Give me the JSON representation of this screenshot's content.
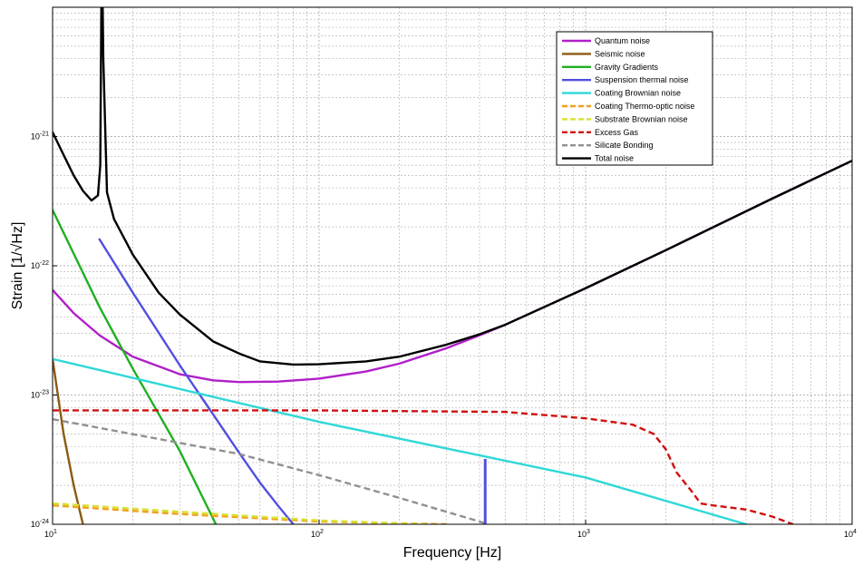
{
  "chart_data": {
    "type": "line",
    "xlabel": "Frequency [Hz]",
    "ylabel": "Strain [1/√Hz]",
    "xscale": "log",
    "yscale": "log",
    "xlim": [
      10,
      10000
    ],
    "ylim": [
      1e-24,
      1e-20
    ],
    "grid": true,
    "legend_position": "top-right",
    "x_ticks": [
      {
        "value": 10,
        "base": "10",
        "exp": "1"
      },
      {
        "value": 100,
        "base": "10",
        "exp": "2"
      },
      {
        "value": 1000,
        "base": "10",
        "exp": "3"
      },
      {
        "value": 10000,
        "base": "10",
        "exp": "4"
      }
    ],
    "y_ticks": [
      {
        "value": 1e-24,
        "base": "10",
        "exp": "-24"
      },
      {
        "value": 1e-23,
        "base": "10",
        "exp": "-23"
      },
      {
        "value": 1e-22,
        "base": "10",
        "exp": "-22"
      },
      {
        "value": 1e-21,
        "base": "10",
        "exp": "-21"
      }
    ],
    "series": [
      {
        "name": "Quantum noise",
        "color": "#b020c8",
        "dash": false,
        "points": [
          [
            10,
            6.5e-23
          ],
          [
            12,
            4.3e-23
          ],
          [
            15,
            2.9e-23
          ],
          [
            20,
            1.98e-23
          ],
          [
            30,
            1.45e-23
          ],
          [
            40,
            1.3e-23
          ],
          [
            50,
            1.26e-23
          ],
          [
            70,
            1.27e-23
          ],
          [
            100,
            1.34e-23
          ],
          [
            150,
            1.52e-23
          ],
          [
            200,
            1.75e-23
          ],
          [
            300,
            2.3e-23
          ],
          [
            400,
            2.9e-23
          ],
          [
            500,
            3.5e-23
          ],
          [
            700,
            4.8e-23
          ],
          [
            1000,
            6.7e-23
          ],
          [
            2000,
            1.32e-22
          ],
          [
            5000,
            3.3e-22
          ],
          [
            10000,
            6.5e-22
          ]
        ]
      },
      {
        "name": "Seismic noise",
        "color": "#8b5a10",
        "dash": false,
        "points": [
          [
            10,
            1.9e-23
          ],
          [
            11,
            5e-24
          ],
          [
            12,
            2e-24
          ],
          [
            13,
            1e-24
          ]
        ]
      },
      {
        "name": "Gravity Gradients",
        "color": "#20b020",
        "dash": false,
        "points": [
          [
            10,
            2.7e-22
          ],
          [
            15,
            4.8e-23
          ],
          [
            20,
            1.6e-23
          ],
          [
            30,
            3.7e-24
          ],
          [
            41,
            1e-24
          ]
        ]
      },
      {
        "name": "Suspension thermal noise",
        "color": "#5050e0",
        "dash": false,
        "points": [
          [
            15,
            1.6e-22
          ],
          [
            20,
            6.2e-23
          ],
          [
            30,
            1.7e-23
          ],
          [
            40,
            7.1e-24
          ],
          [
            50,
            3.6e-24
          ],
          [
            60,
            2.1e-24
          ],
          [
            70,
            1.4e-24
          ],
          [
            80,
            1e-24
          ]
        ]
      },
      {
        "name": "Coating Brownian noise",
        "color": "#30d8d8",
        "dash": false,
        "points": [
          [
            10,
            1.9e-23
          ],
          [
            100,
            6.2e-24
          ],
          [
            1000,
            2.3e-24
          ],
          [
            4000,
            1e-24
          ]
        ]
      },
      {
        "name": "Coating Thermo-optic noise",
        "color": "#f0a020",
        "dash": true,
        "points": [
          [
            10,
            1.4e-24
          ],
          [
            30,
            1.2e-24
          ],
          [
            100,
            1.05e-24
          ],
          [
            300,
            1e-24
          ]
        ]
      },
      {
        "name": "Substrate Brownian noise",
        "color": "#d8e030",
        "dash": true,
        "points": [
          [
            10,
            1.45e-24
          ],
          [
            30,
            1.25e-24
          ],
          [
            100,
            1.07e-24
          ],
          [
            250,
            1e-24
          ]
        ]
      },
      {
        "name": "Excess Gas",
        "color": "#d01010",
        "dash": true,
        "points": [
          [
            10,
            7.6e-24
          ],
          [
            100,
            7.6e-24
          ],
          [
            500,
            7.4e-24
          ],
          [
            1000,
            6.6e-24
          ],
          [
            1500,
            5.9e-24
          ],
          [
            1800,
            5e-24
          ],
          [
            2000,
            3.8e-24
          ],
          [
            2200,
            2.5e-24
          ],
          [
            2500,
            1.8e-24
          ],
          [
            2700,
            1.45e-24
          ],
          [
            3000,
            1.4e-24
          ],
          [
            4000,
            1.3e-24
          ],
          [
            5000,
            1.15e-24
          ],
          [
            6000,
            1e-24
          ]
        ]
      },
      {
        "name": "Silicate Bonding",
        "color": "#909090",
        "dash": true,
        "points": [
          [
            10,
            6.5e-24
          ],
          [
            50,
            3.5e-24
          ],
          [
            100,
            2.4e-24
          ],
          [
            200,
            1.6e-24
          ],
          [
            400,
            1.05e-24
          ],
          [
            430,
            1e-24
          ]
        ]
      },
      {
        "name": "Total noise",
        "color": "#000000",
        "dash": false,
        "points": [
          [
            10,
            1.08e-21
          ],
          [
            11,
            7.2e-22
          ],
          [
            12,
            5e-22
          ],
          [
            13,
            3.8e-22
          ],
          [
            14,
            3.2e-22
          ],
          [
            14.8,
            3.5e-22
          ],
          [
            15.1,
            6e-22
          ],
          [
            15.3,
            3.5e-20
          ],
          [
            15.5,
            4e-21
          ],
          [
            16,
            3.7e-22
          ],
          [
            17,
            2.3e-22
          ],
          [
            20,
            1.22e-22
          ],
          [
            25,
            6.2e-23
          ],
          [
            30,
            4.2e-23
          ],
          [
            40,
            2.6e-23
          ],
          [
            50,
            2.1e-23
          ],
          [
            60,
            1.82e-23
          ],
          [
            80,
            1.72e-23
          ],
          [
            100,
            1.73e-23
          ],
          [
            150,
            1.82e-23
          ],
          [
            200,
            1.98e-23
          ],
          [
            300,
            2.45e-23
          ],
          [
            400,
            2.95e-23
          ],
          [
            500,
            3.5e-23
          ],
          [
            700,
            4.8e-23
          ],
          [
            1000,
            6.7e-23
          ],
          [
            2000,
            1.32e-22
          ],
          [
            5000,
            3.3e-22
          ],
          [
            10000,
            6.5e-22
          ]
        ]
      }
    ],
    "annotations": [
      {
        "type": "spike",
        "color": "#5050e0",
        "x": 420,
        "y_from": 1e-24,
        "y_to": 3.2e-24
      }
    ]
  }
}
